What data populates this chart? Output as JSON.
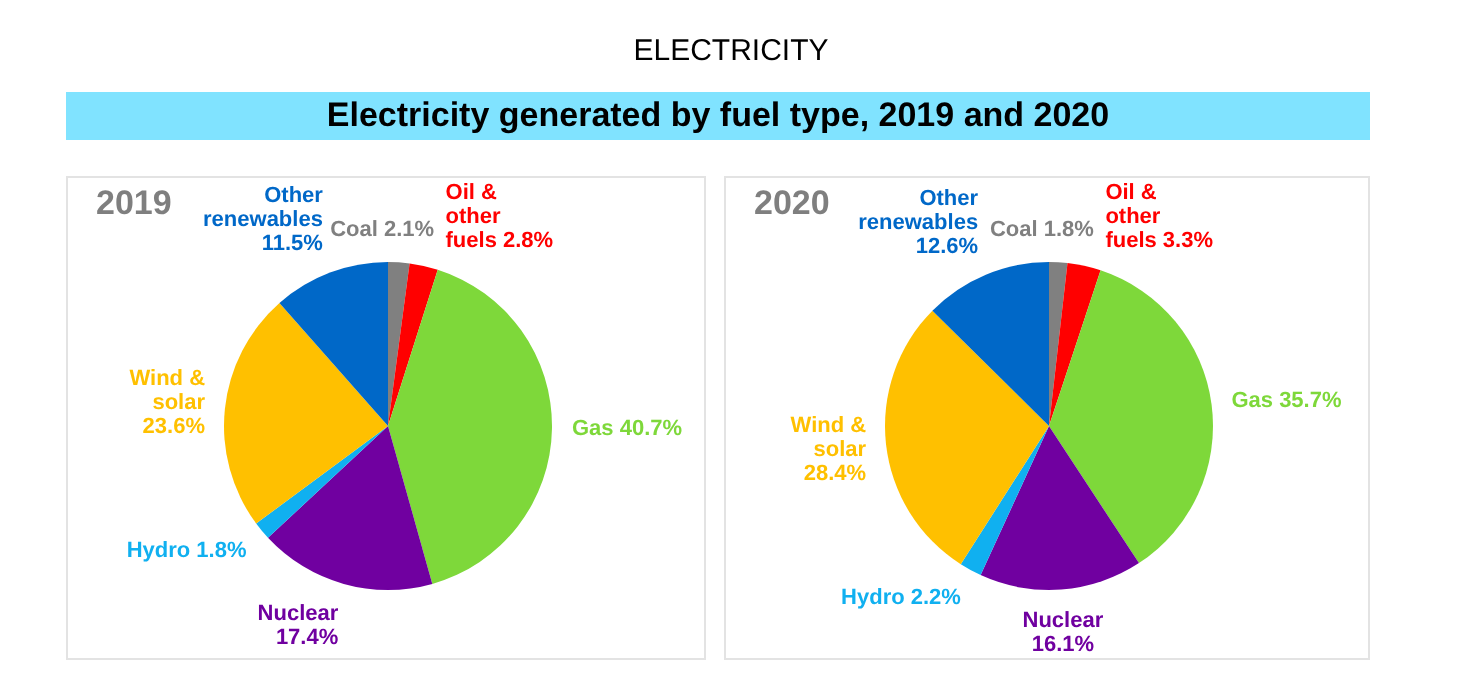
{
  "chart_data": [
    {
      "type": "pie",
      "title": "2019",
      "annotations": [
        "ELECTRICITY",
        "Electricity generated by fuel type, 2019 and 2020"
      ],
      "categories": [
        "Coal",
        "Oil & other fuels",
        "Gas",
        "Nuclear",
        "Hydro",
        "Wind & solar",
        "Other renewables"
      ],
      "values": [
        2.1,
        2.8,
        40.7,
        17.4,
        1.8,
        23.6,
        11.5
      ],
      "value_labels": [
        "2.1%",
        "2.8%",
        "40.7%",
        "17.4%",
        "1.8%",
        "23.6%",
        "11.5%"
      ],
      "colors": [
        "#808080",
        "#ff0000",
        "#7ed83a",
        "#7000a0",
        "#10b0f0",
        "#ffc000",
        "#0068c8"
      ]
    },
    {
      "type": "pie",
      "title": "2020",
      "categories": [
        "Coal",
        "Oil & other fuels",
        "Gas",
        "Nuclear",
        "Hydro",
        "Wind & solar",
        "Other renewables"
      ],
      "values": [
        1.8,
        3.3,
        35.7,
        16.1,
        2.2,
        28.4,
        12.6
      ],
      "value_labels": [
        "1.8%",
        "3.3%",
        "35.7%",
        "16.1%",
        "2.2%",
        "28.4%",
        "12.6%"
      ],
      "colors": [
        "#808080",
        "#ff0000",
        "#7ed83a",
        "#7000a0",
        "#10b0f0",
        "#ffc000",
        "#0068c8"
      ]
    }
  ]
}
